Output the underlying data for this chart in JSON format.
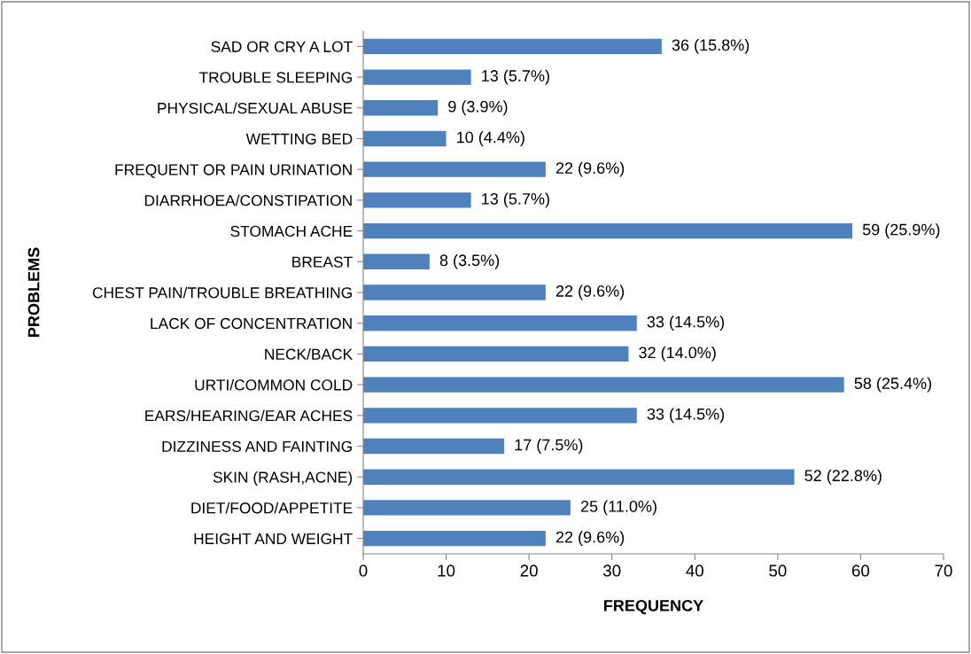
{
  "chart_data": {
    "type": "bar",
    "orientation": "horizontal",
    "xlabel": "FREQUENCY",
    "ylabel": "PROBLEMS",
    "categories": [
      "SAD OR CRY A LOT",
      "TROUBLE SLEEPING",
      "PHYSICAL/SEXUAL ABUSE",
      "WETTING BED",
      "FREQUENT OR PAIN URINATION",
      "DIARRHOEA/CONSTIPATION",
      "STOMACH ACHE",
      "BREAST",
      "CHEST PAIN/TROUBLE BREATHING",
      "LACK OF CONCENTRATION",
      "NECK/BACK",
      "URTI/COMMON COLD",
      "EARS/HEARING/EAR ACHES",
      "DIZZINESS AND FAINTING",
      "SKIN (RASH,ACNE)",
      "DIET/FOOD/APPETITE",
      "HEIGHT AND WEIGHT"
    ],
    "values": [
      36,
      13,
      9,
      10,
      22,
      13,
      59,
      8,
      22,
      33,
      32,
      58,
      33,
      17,
      52,
      25,
      22
    ],
    "value_labels": [
      "36 (15.8%)",
      "13 (5.7%)",
      "9 (3.9%)",
      "10 (4.4%)",
      "22 (9.6%)",
      "13 (5.7%)",
      "59 (25.9%)",
      "8 (3.5%)",
      "22 (9.6%)",
      "33 (14.5%)",
      "32 (14.0%)",
      "58 (25.4%)",
      "33 (14.5%)",
      "17 (7.5%)",
      "52 (22.8%)",
      "25 (11.0%)",
      "22 (9.6%)"
    ],
    "color": "#4f81bd",
    "xlim": [
      0,
      70
    ],
    "xticks": [
      0,
      10,
      20,
      30,
      40,
      50,
      60,
      70
    ],
    "grid": false
  }
}
